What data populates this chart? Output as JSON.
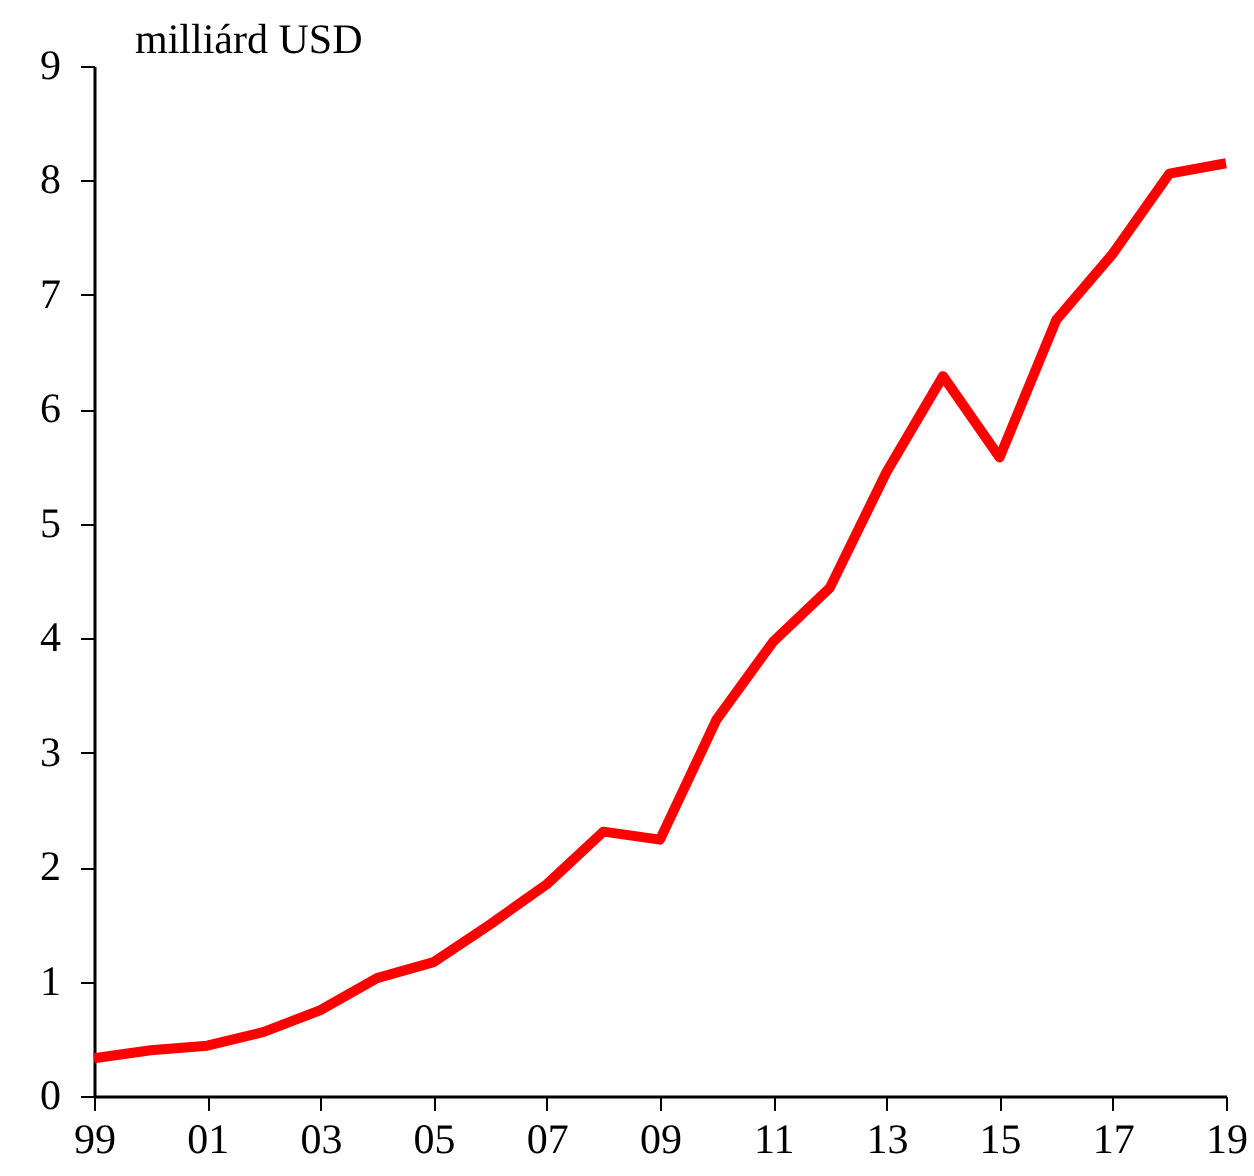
{
  "chart_data": {
    "type": "line",
    "ylabel": "milliárd USD",
    "categories": [
      "99",
      null,
      "01",
      null,
      "03",
      null,
      "05",
      null,
      "07",
      null,
      "09",
      null,
      "11",
      null,
      "13",
      null,
      "15",
      null,
      "17",
      null,
      "19"
    ],
    "series": [
      {
        "color": "#ff0000",
        "values": [
          0.33,
          0.4,
          0.44,
          0.56,
          0.75,
          1.03,
          1.17,
          1.5,
          1.85,
          2.31,
          2.24,
          3.29,
          3.97,
          4.44,
          5.45,
          6.29,
          5.58,
          6.78,
          7.36,
          8.06,
          8.15
        ]
      }
    ],
    "ylim": [
      0,
      9
    ],
    "yticks": [
      0,
      1,
      2,
      3,
      4,
      5,
      6,
      7,
      8,
      9
    ],
    "grid": false,
    "marker": "none",
    "line_style": "solid"
  }
}
